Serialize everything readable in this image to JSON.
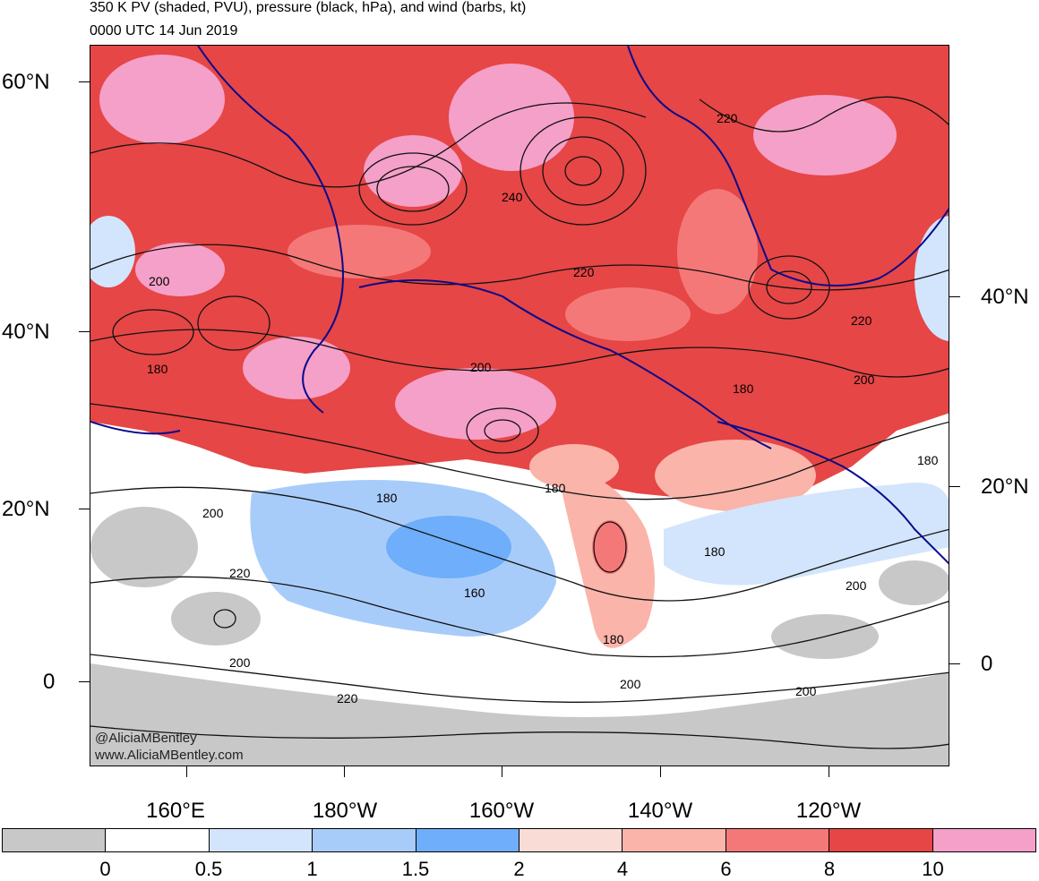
{
  "header": {
    "title": "350 K PV (shaded, PVU), pressure (black, hPa), and wind (barbs, kt)",
    "valid_time": "0000 UTC 14 Jun 2019"
  },
  "axes": {
    "left_lat": [
      "60°N",
      "40°N",
      "20°N",
      "0"
    ],
    "right_lat": [
      "40°N",
      "20°N",
      "0"
    ],
    "bottom_lon": [
      "160°E",
      "180°W",
      "160°W",
      "140°W",
      "120°W"
    ]
  },
  "credits": {
    "twitter": "@AliciaMBentley",
    "website": "www.AliciaMBentley.com"
  },
  "contour_labels": [
    "220",
    "240",
    "220",
    "200",
    "220",
    "180",
    "200",
    "180",
    "200",
    "180",
    "180",
    "200",
    "220",
    "160",
    "180",
    "180",
    "200",
    "200",
    "200",
    "220",
    "200",
    "180"
  ],
  "colorbar": {
    "colors": [
      "#c8c8c8",
      "#ffffff",
      "#d2e5fc",
      "#a8ccfa",
      "#6eaefa",
      "#fadcd6",
      "#fab4aa",
      "#f57878",
      "#e64646",
      "#f5a0c8"
    ],
    "labels": [
      "0",
      "0.5",
      "1",
      "1.5",
      "2",
      "4",
      "6",
      "8",
      "10"
    ]
  },
  "map_colors": {
    "pv_high": "#e64646",
    "pv_mid": "#f57878",
    "pv_pink": "#f5a0c8",
    "pv_light": "#fab4aa",
    "pv_blue": "#a8ccfa",
    "pv_gray": "#c8c8c8",
    "coast": "#0a0a8c",
    "contour": "#111111"
  }
}
